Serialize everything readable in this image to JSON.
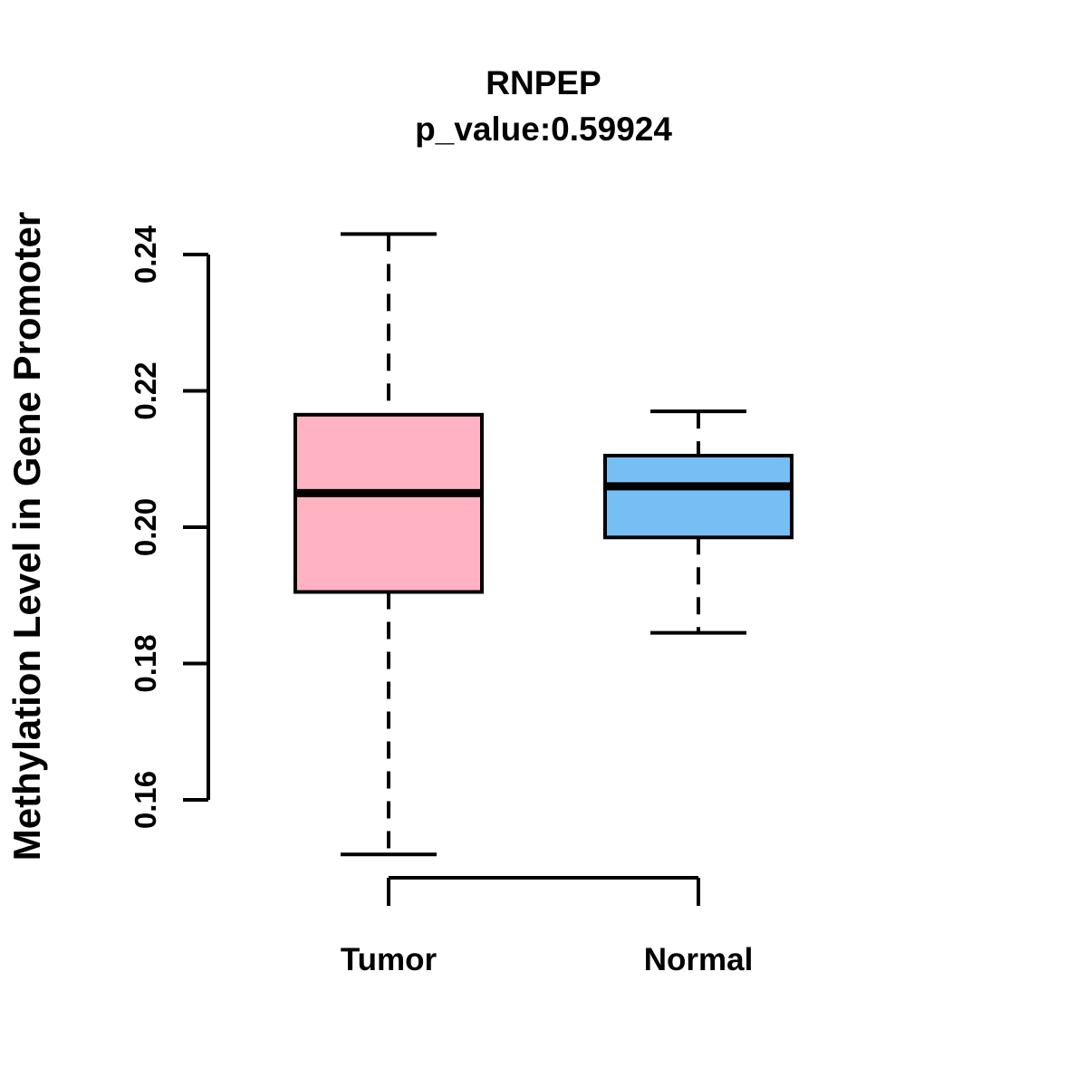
{
  "figure": {
    "title": "RNPEP",
    "subtitle": "p_value:0.59924",
    "y_axis": {
      "label": "Methylation Level in Gene Promoter",
      "tick_labels": [
        "0.16",
        "0.18",
        "0.20",
        "0.22",
        "0.24"
      ],
      "tick_values": [
        0.16,
        0.18,
        0.2,
        0.22,
        0.24
      ],
      "range": [
        0.16,
        0.24
      ]
    },
    "x_axis": {
      "categories": [
        "Tumor",
        "Normal"
      ]
    }
  },
  "chart_data": {
    "type": "boxplot",
    "title": "RNPEP",
    "subtitle": "p_value:0.59924",
    "xlabel": "",
    "ylabel": "Methylation Level in Gene Promoter",
    "categories": [
      "Tumor",
      "Normal"
    ],
    "yticks": [
      0.16,
      0.18,
      0.2,
      0.22,
      0.24
    ],
    "ylim": [
      0.152,
      0.243
    ],
    "grid": false,
    "whisker_style": "dashed",
    "series": [
      {
        "name": "Tumor",
        "lower_whisker": 0.152,
        "q1": 0.1905,
        "median": 0.205,
        "q3": 0.2165,
        "upper_whisker": 0.243,
        "fill_color": "#FFB3C2"
      },
      {
        "name": "Normal",
        "lower_whisker": 0.1845,
        "q1": 0.1985,
        "median": 0.206,
        "q3": 0.2105,
        "upper_whisker": 0.217,
        "fill_color": "#76BFF5"
      }
    ]
  },
  "colors": {
    "tumor_box_fill": "#FFB3C2",
    "normal_box_fill": "#76BFF5",
    "line_color": "#000000",
    "background": "#FFFFFF"
  }
}
